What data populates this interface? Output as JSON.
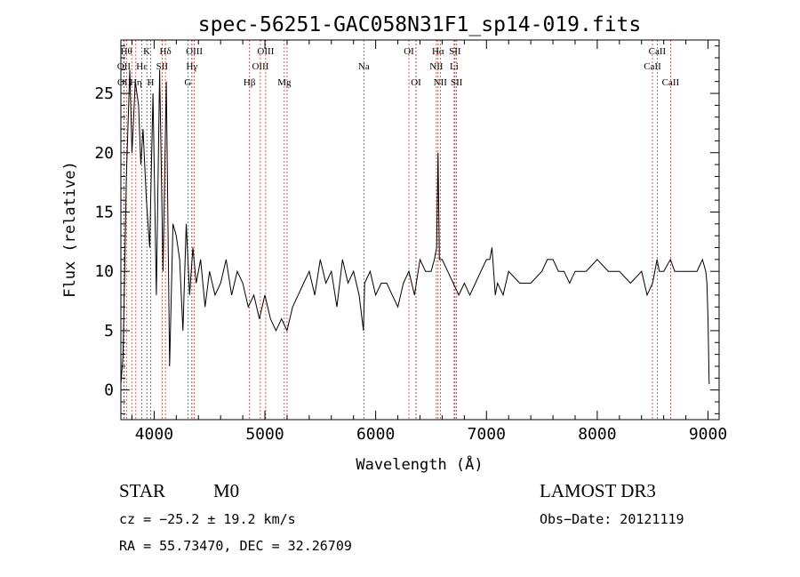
{
  "chart_data": {
    "type": "line",
    "title": "spec-56251-GAC058N31F1_sp14-019.fits",
    "xlabel": "Wavelength (Å)",
    "ylabel": "Flux (relative)",
    "xlim": [
      3700,
      9100
    ],
    "ylim": [
      -2.5,
      29.5
    ],
    "xticks": [
      4000,
      5000,
      6000,
      7000,
      8000,
      9000
    ],
    "yticks": [
      0,
      5,
      10,
      15,
      20,
      25
    ],
    "xtick_labels": [
      "4000",
      "5000",
      "6000",
      "7000",
      "8000",
      "9000"
    ],
    "ytick_labels": [
      "0",
      "5",
      "10",
      "15",
      "20",
      "25"
    ],
    "grid": false,
    "series": [
      {
        "name": "flux",
        "x": [
          3700,
          3720,
          3750,
          3780,
          3800,
          3830,
          3860,
          3880,
          3900,
          3930,
          3960,
          3990,
          4020,
          4050,
          4080,
          4110,
          4140,
          4170,
          4200,
          4230,
          4260,
          4290,
          4320,
          4350,
          4380,
          4420,
          4460,
          4500,
          4550,
          4600,
          4650,
          4700,
          4750,
          4800,
          4850,
          4900,
          4950,
          5000,
          5050,
          5100,
          5150,
          5200,
          5250,
          5300,
          5350,
          5400,
          5450,
          5500,
          5550,
          5600,
          5650,
          5700,
          5750,
          5800,
          5850,
          5890,
          5900,
          5950,
          6000,
          6050,
          6100,
          6150,
          6200,
          6250,
          6300,
          6350,
          6400,
          6450,
          6500,
          6530,
          6550,
          6563,
          6575,
          6600,
          6650,
          6700,
          6750,
          6800,
          6850,
          6900,
          6950,
          7000,
          7030,
          7050,
          7080,
          7100,
          7150,
          7200,
          7300,
          7400,
          7500,
          7550,
          7600,
          7650,
          7700,
          7750,
          7800,
          7900,
          8000,
          8100,
          8200,
          8300,
          8400,
          8450,
          8500,
          8540,
          8560,
          8600,
          8660,
          8700,
          8750,
          8800,
          8850,
          8900,
          8950,
          8980,
          8990,
          9000,
          9010
        ],
        "y": [
          0.5,
          3,
          18,
          27,
          20,
          26,
          24,
          19,
          22,
          16,
          12,
          25,
          8,
          27,
          10,
          26,
          2,
          14,
          13,
          11,
          5,
          14,
          8,
          12,
          9,
          11,
          7,
          10,
          8,
          9,
          11,
          8,
          10,
          9,
          7,
          8,
          6,
          8,
          6,
          5,
          6,
          5,
          7,
          8,
          9,
          10,
          8,
          11,
          9,
          10,
          7,
          11,
          9,
          10,
          8,
          5,
          9,
          10,
          8,
          9,
          9,
          8,
          7,
          9,
          10,
          8,
          11,
          10,
          10,
          11,
          12,
          20,
          11,
          11,
          10,
          9,
          8,
          9,
          8,
          9,
          10,
          11,
          11,
          12,
          8,
          9,
          8,
          10,
          9,
          9,
          10,
          11,
          11,
          10,
          10,
          9,
          10,
          10,
          11,
          10,
          10,
          9,
          10,
          8,
          9,
          11,
          10,
          10,
          11,
          10,
          10,
          10,
          10,
          10,
          11,
          10,
          9,
          6,
          0.5
        ]
      }
    ],
    "line_markers": [
      {
        "label": "Hθ",
        "wavelength": 3750,
        "row": 1
      },
      {
        "label": "OII",
        "wavelength": 3727,
        "row": 2
      },
      {
        "label": "OII",
        "wavelength": 3729,
        "row": 3
      },
      {
        "label": "Hη",
        "wavelength": 3835,
        "row": 3
      },
      {
        "label": "Hε",
        "wavelength": 3889,
        "row": 2
      },
      {
        "label": "K",
        "wavelength": 3934,
        "row": 1
      },
      {
        "label": "H",
        "wavelength": 3969,
        "row": 3
      },
      {
        "label": "SII",
        "wavelength": 4072,
        "row": 2
      },
      {
        "label": "Hδ",
        "wavelength": 4102,
        "row": 1
      },
      {
        "label": "OIII",
        "wavelength": 4363,
        "row": 1
      },
      {
        "label": "Hγ",
        "wavelength": 4341,
        "row": 2
      },
      {
        "label": "G",
        "wavelength": 4305,
        "row": 3
      },
      {
        "label": "Hβ",
        "wavelength": 4861,
        "row": 3
      },
      {
        "label": "OIII",
        "wavelength": 5007,
        "row": 1
      },
      {
        "label": "OIII",
        "wavelength": 4959,
        "row": 2
      },
      {
        "label": "Mg",
        "wavelength": 5175,
        "row": 3
      },
      {
        "label": "Na",
        "wavelength": 5893,
        "row": 2
      },
      {
        "label": "OI",
        "wavelength": 6300,
        "row": 1
      },
      {
        "label": "OI",
        "wavelength": 6364,
        "row": 3
      },
      {
        "label": "Hα",
        "wavelength": 6563,
        "row": 1
      },
      {
        "label": "NII",
        "wavelength": 6548,
        "row": 2
      },
      {
        "label": "NII",
        "wavelength": 6583,
        "row": 3
      },
      {
        "label": "SII",
        "wavelength": 6716,
        "row": 1
      },
      {
        "label": "Li",
        "wavelength": 6708,
        "row": 2
      },
      {
        "label": "SII",
        "wavelength": 6731,
        "row": 3
      },
      {
        "label": "CaII",
        "wavelength": 8542,
        "row": 1
      },
      {
        "label": "CaII",
        "wavelength": 8498,
        "row": 2
      },
      {
        "label": "CaII",
        "wavelength": 8662,
        "row": 3
      }
    ],
    "extra_lines": [
      3798,
      3889,
      4102,
      4340,
      4861,
      5200,
      6300,
      6363,
      6548,
      6583,
      6716,
      6731
    ],
    "colors": {
      "spectrum": "#000000",
      "marker_line": "#c0392b",
      "axis": "#000000"
    }
  },
  "info": {
    "object_class": "STAR",
    "subclass": "M0",
    "survey": "LAMOST DR3",
    "cz": "cz = −25.2 ± 19.2 km/s",
    "obs_date": "Obs−Date: 20121119",
    "coords": "RA =  55.73470, DEC =  32.26709"
  }
}
